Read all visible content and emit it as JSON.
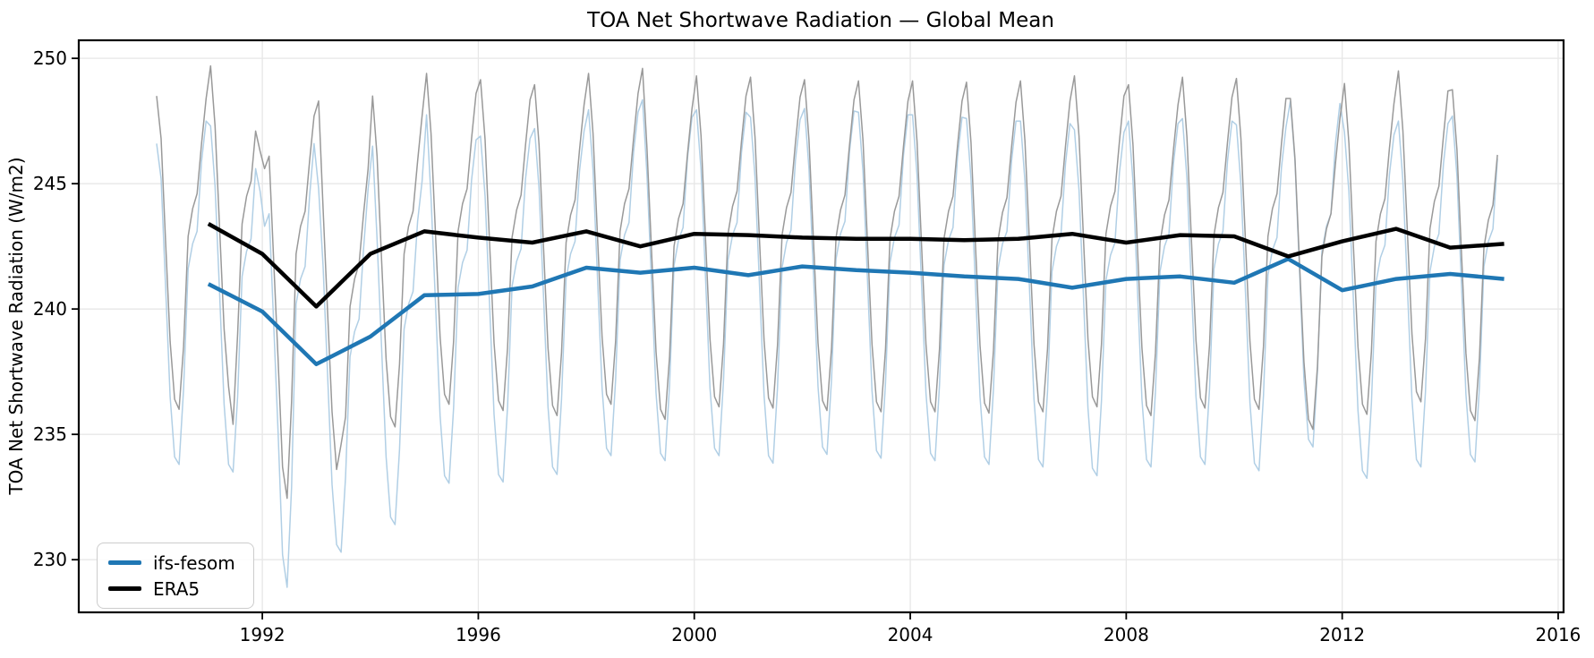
{
  "page": {
    "background": "#ffffff",
    "text_color": "#000000"
  },
  "chart_data": {
    "type": "line",
    "title": "TOA Net Shortwave Radiation — Global Mean",
    "xlabel": "",
    "ylabel": "TOA Net Shortwave Radiation (W/m2)",
    "xlim": [
      1988.6,
      2016.1
    ],
    "ylim": [
      227.9,
      250.72
    ],
    "xticks": [
      1992,
      1996,
      2000,
      2004,
      2008,
      2012,
      2016
    ],
    "yticks": [
      230,
      235,
      240,
      245,
      250
    ],
    "grid": true,
    "grid_color": "#e7e7e7",
    "spine_color": "#000000",
    "legend": {
      "position": "lower left",
      "entries": [
        {
          "label": "ifs-fesom",
          "color": "#1f77b4"
        },
        {
          "label": "ERA5",
          "color": "#000000"
        }
      ]
    },
    "series": [
      {
        "name": "ifs-fesom monthly",
        "role": "monthly",
        "color": "#b1cfe5",
        "linewidth": 1.5,
        "monthly": true,
        "start_year": 1990,
        "end_year": 2014,
        "end_month": 11,
        "seasonal_anomaly": [
          6.3,
          3.9,
          -0.4,
          -4.8,
          -7.2,
          -7.5,
          -4.5,
          0.3,
          1.3,
          1.8,
          4.6,
          6.2
        ],
        "annual_baseline": [
          241.3,
          241.0,
          239.9,
          237.8,
          238.9,
          240.55,
          240.6,
          240.9,
          241.65,
          241.45,
          241.65,
          241.35,
          241.7,
          241.55,
          241.45,
          241.3,
          241.2,
          240.85,
          241.2,
          241.3,
          241.05,
          242.0,
          240.75,
          241.2,
          241.4
        ],
        "adjustments": [
          [
            1990,
            1,
            -1.0
          ],
          [
            1991,
            12,
            -2.5
          ],
          [
            1992,
            1,
            -2.9
          ],
          [
            1992,
            5,
            -2.5
          ],
          [
            1992,
            6,
            -3.5
          ],
          [
            1992,
            7,
            -2.5
          ],
          [
            1992,
            12,
            0.5
          ],
          [
            1993,
            1,
            0.7
          ],
          [
            1993,
            12,
            0.8
          ],
          [
            1994,
            1,
            1.3
          ],
          [
            1995,
            1,
            0.9
          ],
          [
            1999,
            1,
            0.6
          ]
        ]
      },
      {
        "name": "ERA5 monthly",
        "role": "monthly",
        "color": "#999999",
        "linewidth": 1.5,
        "monthly": true,
        "start_year": 1990,
        "end_year": 2014,
        "end_month": 11,
        "seasonal_anomaly": [
          6.3,
          3.9,
          -0.2,
          -4.2,
          -6.5,
          -6.9,
          -4.4,
          0.0,
          1.1,
          1.7,
          3.7,
          5.5
        ],
        "annual_baseline": [
          242.9,
          243.4,
          242.2,
          240.1,
          242.2,
          243.1,
          242.85,
          242.65,
          243.1,
          242.5,
          243.0,
          242.95,
          242.85,
          242.8,
          242.8,
          242.75,
          242.8,
          243.0,
          242.65,
          242.95,
          242.9,
          242.1,
          242.7,
          243.2,
          242.45
        ],
        "adjustments": [
          [
            1990,
            1,
            -0.7
          ],
          [
            1991,
            6,
            -1.1
          ],
          [
            1991,
            12,
            -2.6
          ],
          [
            1992,
            1,
            -2.9
          ],
          [
            1992,
            5,
            -2.0
          ],
          [
            1992,
            6,
            -2.85
          ],
          [
            1992,
            7,
            -1.5
          ],
          [
            1993,
            1,
            1.9
          ],
          [
            1993,
            6,
            1.4
          ],
          [
            1999,
            1,
            0.8
          ]
        ]
      },
      {
        "name": "ifs-fesom",
        "role": "annual-mean",
        "color": "#1f77b4",
        "linewidth": 4.5,
        "years": [
          1991,
          1992,
          1993,
          1994,
          1995,
          1996,
          1997,
          1998,
          1999,
          2000,
          2001,
          2002,
          2003,
          2004,
          2005,
          2006,
          2007,
          2008,
          2009,
          2010,
          2011,
          2012,
          2013,
          2014,
          2015
        ],
        "values": [
          241.0,
          239.9,
          237.8,
          238.9,
          240.55,
          240.6,
          240.9,
          241.65,
          241.45,
          241.65,
          241.35,
          241.7,
          241.55,
          241.45,
          241.3,
          241.2,
          240.85,
          241.2,
          241.3,
          241.05,
          242.0,
          240.75,
          241.2,
          241.4,
          241.2
        ]
      },
      {
        "name": "ERA5",
        "role": "annual-mean",
        "color": "#000000",
        "linewidth": 4.5,
        "years": [
          1991,
          1992,
          1993,
          1994,
          1995,
          1996,
          1997,
          1998,
          1999,
          2000,
          2001,
          2002,
          2003,
          2004,
          2005,
          2006,
          2007,
          2008,
          2009,
          2010,
          2011,
          2012,
          2013,
          2014,
          2015
        ],
        "values": [
          243.4,
          242.2,
          240.1,
          242.2,
          243.1,
          242.85,
          242.65,
          243.1,
          242.5,
          243.0,
          242.95,
          242.85,
          242.8,
          242.8,
          242.75,
          242.8,
          243.0,
          242.65,
          242.95,
          242.9,
          242.1,
          242.7,
          243.2,
          242.45,
          242.6
        ]
      }
    ]
  }
}
